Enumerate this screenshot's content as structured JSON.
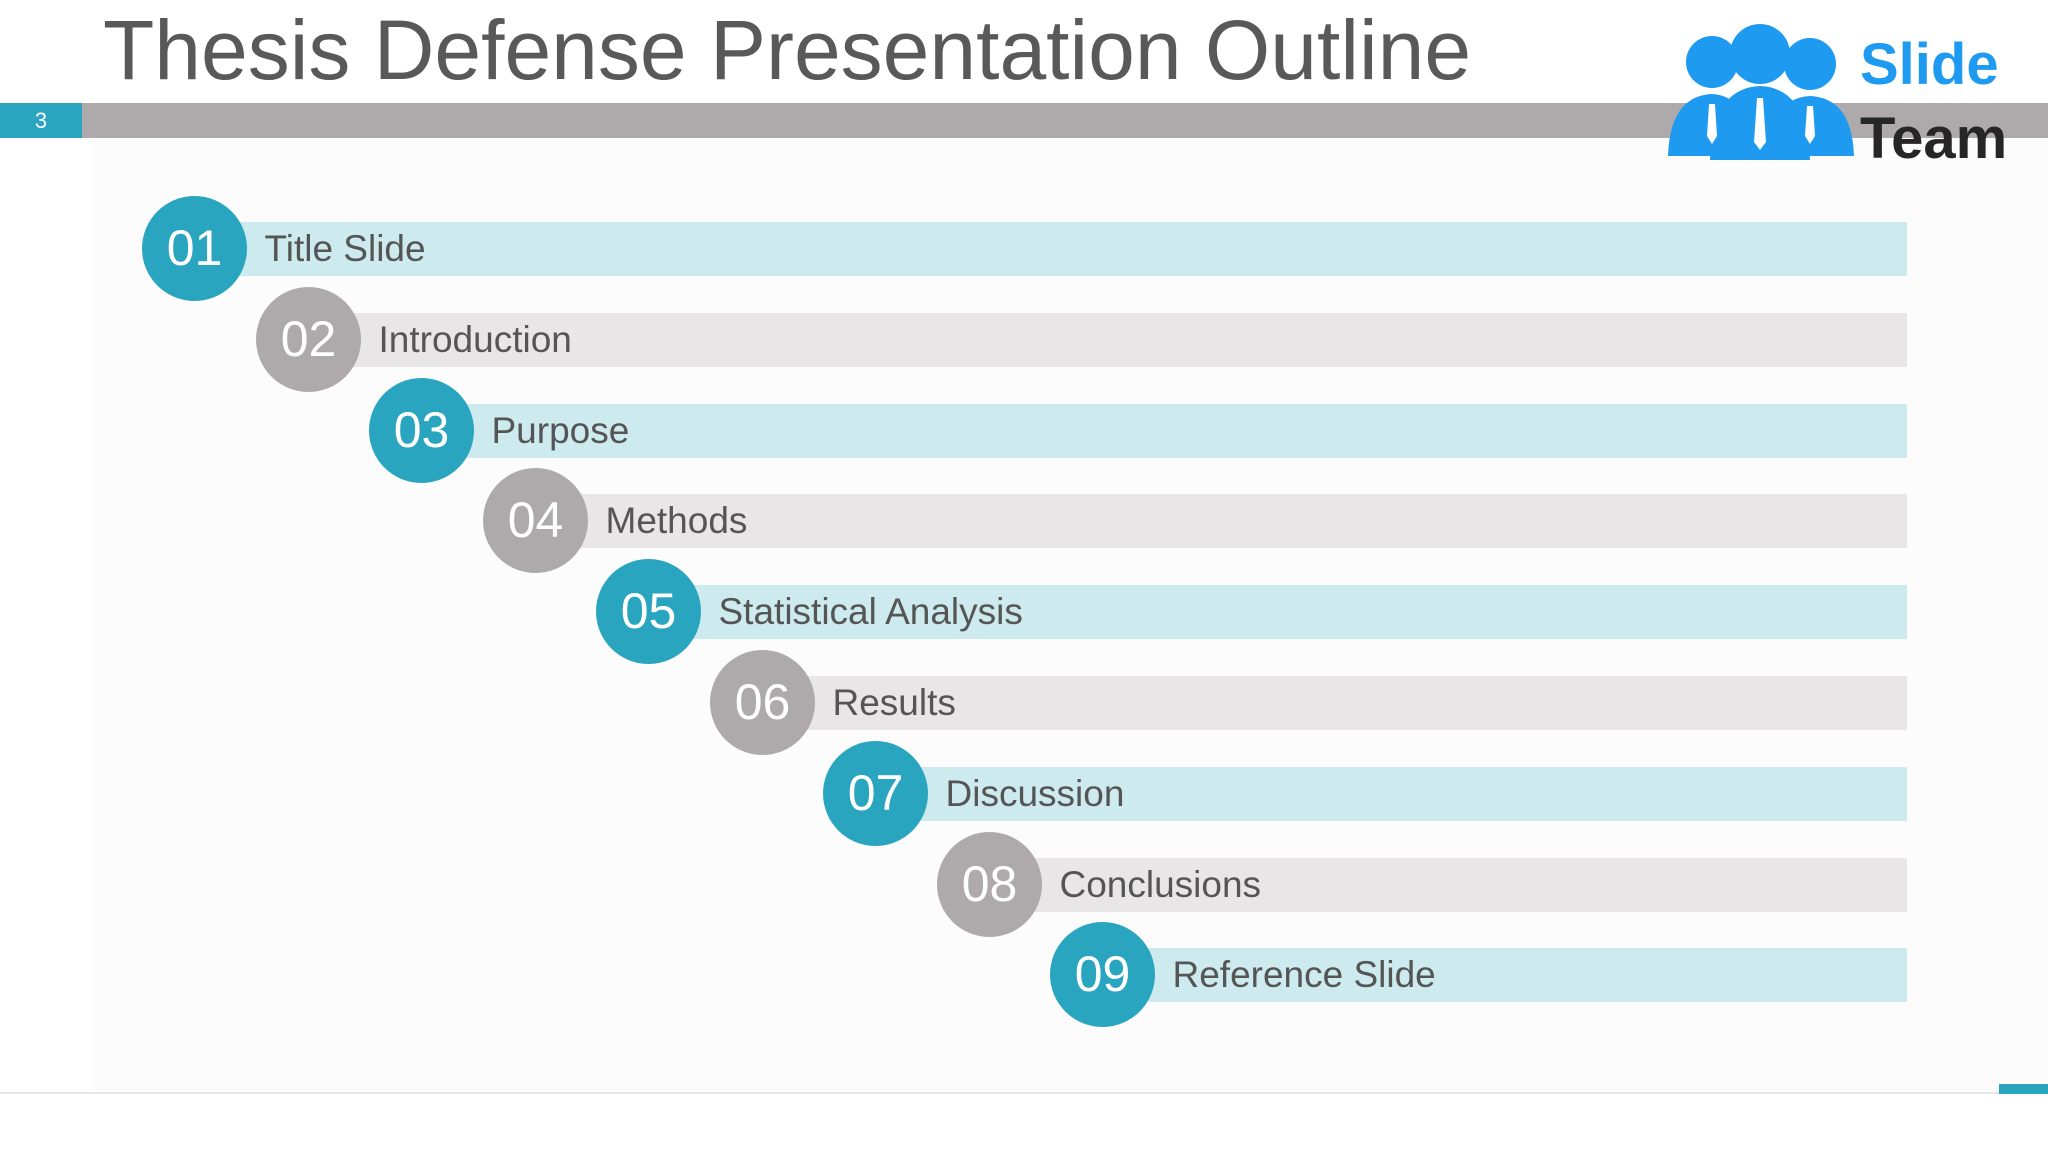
{
  "slide": {
    "title": "Thesis Defense Presentation Outline",
    "page_number": "3"
  },
  "logo": {
    "line1": "Slide",
    "line2": "Team"
  },
  "colors": {
    "accent_blue": "#2aa5bf",
    "accent_gray": "#aeaaab",
    "bar_blue": "#cdebef",
    "bar_gray": "#e8e6e7",
    "logo_blue": "#1e9bf0"
  },
  "outline": [
    {
      "number": "01",
      "label": "Title Slide",
      "style": "blue"
    },
    {
      "number": "02",
      "label": "Introduction",
      "style": "gray"
    },
    {
      "number": "03",
      "label": "Purpose",
      "style": "blue"
    },
    {
      "number": "04",
      "label": "Methods",
      "style": "gray"
    },
    {
      "number": "05",
      "label": "Statistical Analysis",
      "style": "blue"
    },
    {
      "number": "06",
      "label": "Results",
      "style": "gray"
    },
    {
      "number": "07",
      "label": "Discussion",
      "style": "blue"
    },
    {
      "number": "08",
      "label": "Conclusions",
      "style": "gray"
    },
    {
      "number": "09",
      "label": "Reference Slide",
      "style": "blue"
    }
  ]
}
